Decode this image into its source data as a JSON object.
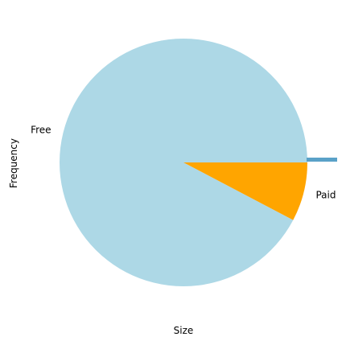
{
  "chart_data": {
    "type": "pie",
    "title": "",
    "xlabel": "Size",
    "ylabel": "Frequency",
    "categories": [
      "Free",
      "Paid"
    ],
    "values": [
      92.3,
      7.7
    ],
    "colors": [
      "#add8e6",
      "#ffa500"
    ],
    "start_angle_deg": 0,
    "direction": "counterclockwise",
    "legend": "none",
    "grid": false
  }
}
